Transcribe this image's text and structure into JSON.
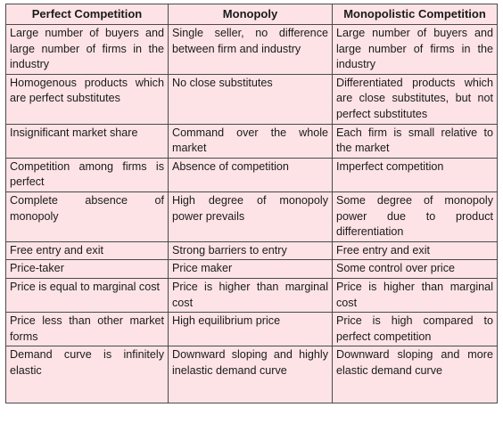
{
  "table": {
    "headers": [
      "Perfect Competition",
      "Monopoly",
      "Monopolistic Competition"
    ],
    "rows": [
      [
        "Large number of buyers and large number of firms in the industry",
        "Single seller, no difference between firm and industry",
        "Large number of buyers and large number of firms in the industry"
      ],
      [
        "Homogenous products which are perfect substitutes",
        "No close substitutes",
        "Differentiated products which are close substitutes, but not perfect substitutes"
      ],
      [
        "Insignificant market share",
        "Command over the whole market",
        "Each firm is small relative to the market"
      ],
      [
        "Competition among firms is perfect",
        "Absence of competition",
        "Imperfect competition"
      ],
      [
        "Complete absence of monopoly",
        "High degree of monopoly power prevails",
        "Some degree of monopoly power due to product differentiation"
      ],
      [
        "Free entry and exit",
        "Strong barriers to entry",
        "Free entry and exit"
      ],
      [
        "Price-taker",
        "Price maker",
        "Some control over price"
      ],
      [
        "Price is equal to marginal cost",
        "Price is higher than marginal cost",
        "Price is higher than marginal cost"
      ],
      [
        "Price less than other market forms",
        "High equilibrium price",
        "Price is high compared to perfect competition"
      ],
      [
        "Demand curve is infinitely elastic",
        "Downward sloping and highly inelastic demand curve",
        "Downward sloping and more elastic demand curve"
      ]
    ]
  },
  "colors": {
    "background": "#fde3e6",
    "border": "#4a4a4a"
  }
}
